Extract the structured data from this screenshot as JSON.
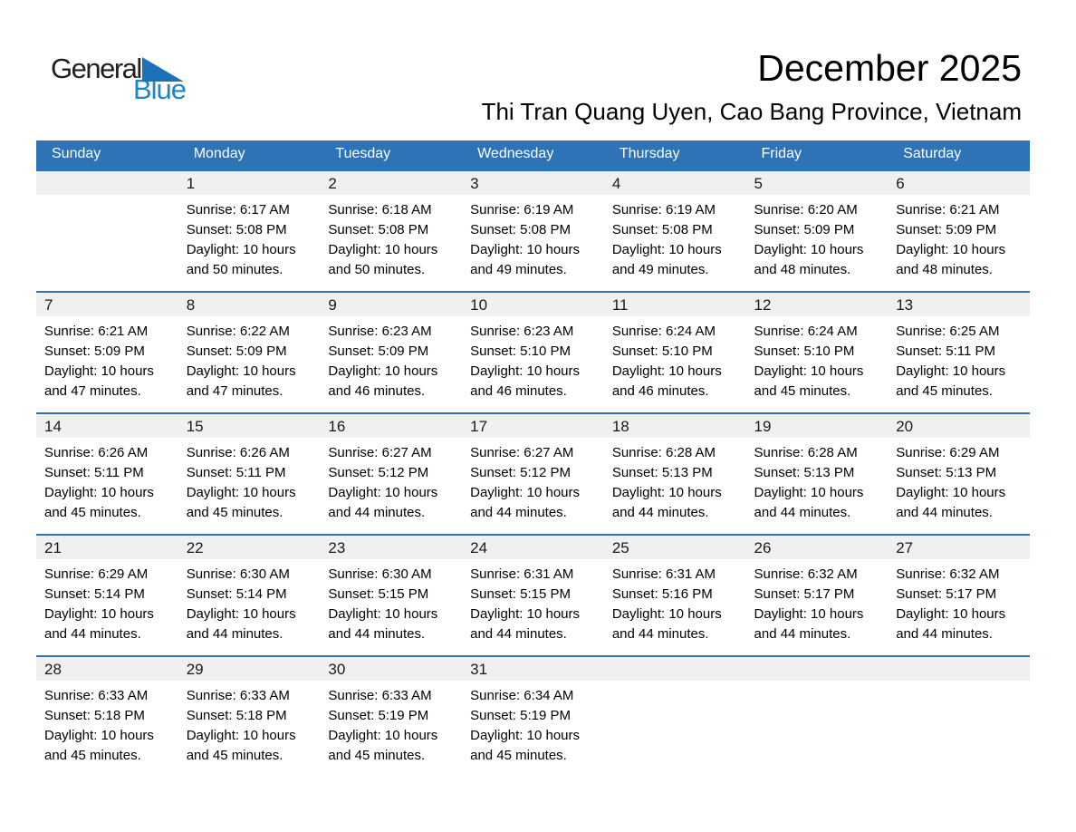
{
  "logo": {
    "general": "General",
    "blue": "Blue"
  },
  "header": {
    "title": "December 2025",
    "subtitle": "Thi Tran Quang Uyen, Cao Bang Province, Vietnam"
  },
  "colors": {
    "header_blue": "#2D73B5",
    "row_band_gray": "#F0F0F0",
    "logo_text_blue": "#1E86C7",
    "logo_triangle_blue": "#1D71B8"
  },
  "calendar": {
    "weekdays": [
      "Sunday",
      "Monday",
      "Tuesday",
      "Wednesday",
      "Thursday",
      "Friday",
      "Saturday"
    ],
    "weeks": [
      [
        null,
        {
          "day": "1",
          "lines": [
            "Sunrise: 6:17 AM",
            "Sunset: 5:08 PM",
            "Daylight: 10 hours",
            "and 50 minutes."
          ]
        },
        {
          "day": "2",
          "lines": [
            "Sunrise: 6:18 AM",
            "Sunset: 5:08 PM",
            "Daylight: 10 hours",
            "and 50 minutes."
          ]
        },
        {
          "day": "3",
          "lines": [
            "Sunrise: 6:19 AM",
            "Sunset: 5:08 PM",
            "Daylight: 10 hours",
            "and 49 minutes."
          ]
        },
        {
          "day": "4",
          "lines": [
            "Sunrise: 6:19 AM",
            "Sunset: 5:08 PM",
            "Daylight: 10 hours",
            "and 49 minutes."
          ]
        },
        {
          "day": "5",
          "lines": [
            "Sunrise: 6:20 AM",
            "Sunset: 5:09 PM",
            "Daylight: 10 hours",
            "and 48 minutes."
          ]
        },
        {
          "day": "6",
          "lines": [
            "Sunrise: 6:21 AM",
            "Sunset: 5:09 PM",
            "Daylight: 10 hours",
            "and 48 minutes."
          ]
        }
      ],
      [
        {
          "day": "7",
          "lines": [
            "Sunrise: 6:21 AM",
            "Sunset: 5:09 PM",
            "Daylight: 10 hours",
            "and 47 minutes."
          ]
        },
        {
          "day": "8",
          "lines": [
            "Sunrise: 6:22 AM",
            "Sunset: 5:09 PM",
            "Daylight: 10 hours",
            "and 47 minutes."
          ]
        },
        {
          "day": "9",
          "lines": [
            "Sunrise: 6:23 AM",
            "Sunset: 5:09 PM",
            "Daylight: 10 hours",
            "and 46 minutes."
          ]
        },
        {
          "day": "10",
          "lines": [
            "Sunrise: 6:23 AM",
            "Sunset: 5:10 PM",
            "Daylight: 10 hours",
            "and 46 minutes."
          ]
        },
        {
          "day": "11",
          "lines": [
            "Sunrise: 6:24 AM",
            "Sunset: 5:10 PM",
            "Daylight: 10 hours",
            "and 46 minutes."
          ]
        },
        {
          "day": "12",
          "lines": [
            "Sunrise: 6:24 AM",
            "Sunset: 5:10 PM",
            "Daylight: 10 hours",
            "and 45 minutes."
          ]
        },
        {
          "day": "13",
          "lines": [
            "Sunrise: 6:25 AM",
            "Sunset: 5:11 PM",
            "Daylight: 10 hours",
            "and 45 minutes."
          ]
        }
      ],
      [
        {
          "day": "14",
          "lines": [
            "Sunrise: 6:26 AM",
            "Sunset: 5:11 PM",
            "Daylight: 10 hours",
            "and 45 minutes."
          ]
        },
        {
          "day": "15",
          "lines": [
            "Sunrise: 6:26 AM",
            "Sunset: 5:11 PM",
            "Daylight: 10 hours",
            "and 45 minutes."
          ]
        },
        {
          "day": "16",
          "lines": [
            "Sunrise: 6:27 AM",
            "Sunset: 5:12 PM",
            "Daylight: 10 hours",
            "and 44 minutes."
          ]
        },
        {
          "day": "17",
          "lines": [
            "Sunrise: 6:27 AM",
            "Sunset: 5:12 PM",
            "Daylight: 10 hours",
            "and 44 minutes."
          ]
        },
        {
          "day": "18",
          "lines": [
            "Sunrise: 6:28 AM",
            "Sunset: 5:13 PM",
            "Daylight: 10 hours",
            "and 44 minutes."
          ]
        },
        {
          "day": "19",
          "lines": [
            "Sunrise: 6:28 AM",
            "Sunset: 5:13 PM",
            "Daylight: 10 hours",
            "and 44 minutes."
          ]
        },
        {
          "day": "20",
          "lines": [
            "Sunrise: 6:29 AM",
            "Sunset: 5:13 PM",
            "Daylight: 10 hours",
            "and 44 minutes."
          ]
        }
      ],
      [
        {
          "day": "21",
          "lines": [
            "Sunrise: 6:29 AM",
            "Sunset: 5:14 PM",
            "Daylight: 10 hours",
            "and 44 minutes."
          ]
        },
        {
          "day": "22",
          "lines": [
            "Sunrise: 6:30 AM",
            "Sunset: 5:14 PM",
            "Daylight: 10 hours",
            "and 44 minutes."
          ]
        },
        {
          "day": "23",
          "lines": [
            "Sunrise: 6:30 AM",
            "Sunset: 5:15 PM",
            "Daylight: 10 hours",
            "and 44 minutes."
          ]
        },
        {
          "day": "24",
          "lines": [
            "Sunrise: 6:31 AM",
            "Sunset: 5:15 PM",
            "Daylight: 10 hours",
            "and 44 minutes."
          ]
        },
        {
          "day": "25",
          "lines": [
            "Sunrise: 6:31 AM",
            "Sunset: 5:16 PM",
            "Daylight: 10 hours",
            "and 44 minutes."
          ]
        },
        {
          "day": "26",
          "lines": [
            "Sunrise: 6:32 AM",
            "Sunset: 5:17 PM",
            "Daylight: 10 hours",
            "and 44 minutes."
          ]
        },
        {
          "day": "27",
          "lines": [
            "Sunrise: 6:32 AM",
            "Sunset: 5:17 PM",
            "Daylight: 10 hours",
            "and 44 minutes."
          ]
        }
      ],
      [
        {
          "day": "28",
          "lines": [
            "Sunrise: 6:33 AM",
            "Sunset: 5:18 PM",
            "Daylight: 10 hours",
            "and 45 minutes."
          ]
        },
        {
          "day": "29",
          "lines": [
            "Sunrise: 6:33 AM",
            "Sunset: 5:18 PM",
            "Daylight: 10 hours",
            "and 45 minutes."
          ]
        },
        {
          "day": "30",
          "lines": [
            "Sunrise: 6:33 AM",
            "Sunset: 5:19 PM",
            "Daylight: 10 hours",
            "and 45 minutes."
          ]
        },
        {
          "day": "31",
          "lines": [
            "Sunrise: 6:34 AM",
            "Sunset: 5:19 PM",
            "Daylight: 10 hours",
            "and 45 minutes."
          ]
        },
        null,
        null,
        null
      ]
    ]
  }
}
